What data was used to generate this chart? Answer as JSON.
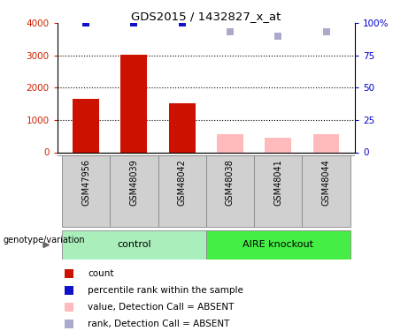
{
  "title": "GDS2015 / 1432827_x_at",
  "samples": [
    "GSM47956",
    "GSM48039",
    "GSM48042",
    "GSM48038",
    "GSM48041",
    "GSM48044"
  ],
  "group_labels": [
    "control",
    "AIRE knockout"
  ],
  "bar_values": [
    1650,
    3020,
    1520,
    560,
    440,
    570
  ],
  "bar_colors": [
    "#cc1100",
    "#cc1100",
    "#cc1100",
    "#ffbbbb",
    "#ffbbbb",
    "#ffbbbb"
  ],
  "blue_squares_y": [
    100,
    100,
    100,
    93,
    90,
    93
  ],
  "blue_sq_colors": [
    "#1111cc",
    "#1111cc",
    "#1111cc",
    "#aaaacc",
    "#aaaacc",
    "#aaaacc"
  ],
  "ylim_left": [
    0,
    4000
  ],
  "ylim_right": [
    0,
    100
  ],
  "yticks_left": [
    0,
    1000,
    2000,
    3000,
    4000
  ],
  "ytick_labels_left": [
    "0",
    "1000",
    "2000",
    "3000",
    "4000"
  ],
  "yticks_right": [
    0,
    25,
    50,
    75,
    100
  ],
  "ytick_labels_right": [
    "0",
    "25",
    "50",
    "75",
    "100%"
  ],
  "left_tick_color": "#cc2200",
  "right_tick_color": "#0000cc",
  "ctrl_color": "#aaeebb",
  "aire_color": "#44ee44",
  "bg_color": "#ffffff",
  "legend_items": [
    {
      "label": "count",
      "color": "#cc1100"
    },
    {
      "label": "percentile rank within the sample",
      "color": "#1111cc"
    },
    {
      "label": "value, Detection Call = ABSENT",
      "color": "#ffbbbb"
    },
    {
      "label": "rank, Detection Call = ABSENT",
      "color": "#aaaacc"
    }
  ],
  "xlabel": "genotype/variation",
  "bar_width": 0.55,
  "square_size": 40
}
